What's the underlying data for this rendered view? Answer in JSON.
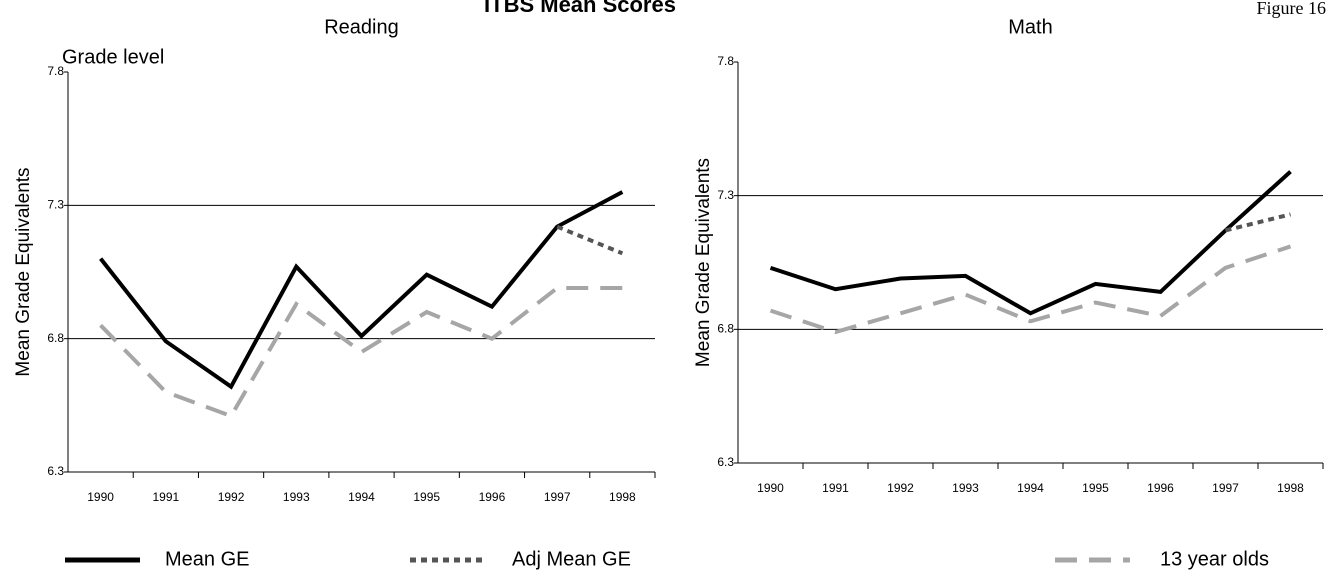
{
  "title": "ITBS Mean Scores",
  "figure_label": "Figure 16",
  "chart_data": [
    {
      "type": "line",
      "title": "Reading",
      "y_label": "Mean Grade Equivalents",
      "annotation": "Grade level",
      "categories": [
        "1990",
        "1991",
        "1992",
        "1993",
        "1994",
        "1995",
        "1996",
        "1997",
        "1998"
      ],
      "ylim": [
        6.3,
        7.8
      ],
      "yticks": [
        6.3,
        6.8,
        7.3,
        7.8
      ],
      "grid": true,
      "series": [
        {
          "name": "Mean GE",
          "color": "#000000",
          "style": "solid",
          "values": [
            7.1,
            6.79,
            6.62,
            7.07,
            6.81,
            7.04,
            6.92,
            7.22,
            7.35
          ]
        },
        {
          "name": "Adj Mean GE",
          "color": "#555555",
          "style": "dotted",
          "values": [
            null,
            null,
            null,
            null,
            null,
            null,
            null,
            7.22,
            7.12
          ]
        },
        {
          "name": "13 year olds",
          "color": "#a6a6a6",
          "style": "dashed",
          "values": [
            6.85,
            6.6,
            6.51,
            6.93,
            6.75,
            6.9,
            6.8,
            6.99,
            6.99
          ]
        }
      ]
    },
    {
      "type": "line",
      "title": "Math",
      "y_label": "Mean Grade Equivalents",
      "categories": [
        "1990",
        "1991",
        "1992",
        "1993",
        "1994",
        "1995",
        "1996",
        "1997",
        "1998"
      ],
      "ylim": [
        6.3,
        7.8
      ],
      "yticks": [
        6.3,
        6.8,
        7.3,
        7.8
      ],
      "grid": true,
      "series": [
        {
          "name": "Mean GE",
          "color": "#000000",
          "style": "solid",
          "values": [
            7.03,
            6.95,
            6.99,
            7.0,
            6.86,
            6.97,
            6.94,
            7.17,
            7.39
          ]
        },
        {
          "name": "Adj Mean GE",
          "color": "#555555",
          "style": "dotted",
          "values": [
            null,
            null,
            null,
            null,
            null,
            null,
            null,
            7.17,
            7.23
          ]
        },
        {
          "name": "13 year olds",
          "color": "#a6a6a6",
          "style": "dashed",
          "values": [
            6.87,
            6.79,
            6.86,
            6.93,
            6.83,
            6.9,
            6.85,
            7.03,
            7.11
          ]
        }
      ]
    }
  ]
}
